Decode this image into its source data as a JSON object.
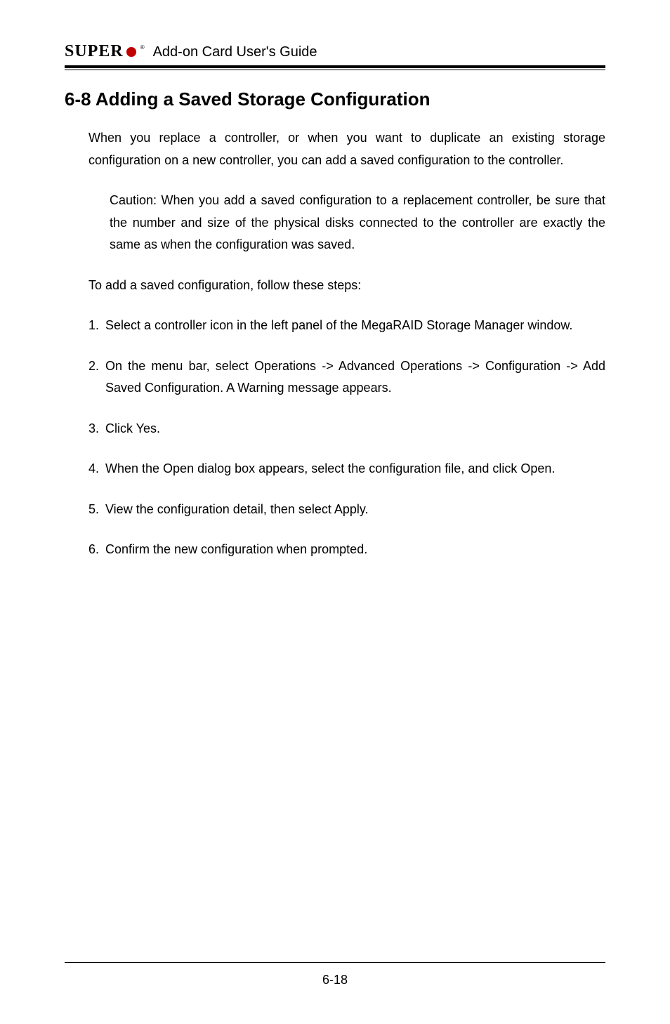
{
  "header": {
    "logo_text": "SUPER",
    "logo_registered": "®",
    "guide_title": "Add-on Card User's Guide"
  },
  "section": {
    "title": "6-8 Adding a Saved Storage Configuration",
    "intro": "When you replace a controller, or when you want to duplicate an existing storage configuration on a new controller, you can add a saved configuration to the controller.",
    "caution": "Caution: When you add a saved configuration to a replacement controller, be sure that the number and size of the physical disks connected to the controller are exactly the same as when the configuration was saved.",
    "steps_intro": "To add a saved configuration, follow these steps:",
    "steps": [
      "Select a controller icon in the left panel of the MegaRAID Storage Manager window.",
      "On the menu bar, select Operations -> Advanced Operations -> Configuration -> Add Saved Configuration. A Warning message appears.",
      "Click Yes.",
      "When the Open dialog box appears, select the configuration file, and click Open.",
      "View the configuration detail, then select Apply.",
      "Confirm the new configuration when prompted."
    ]
  },
  "footer": {
    "page_number": "6-18"
  },
  "colors": {
    "text": "#000000",
    "background": "#ffffff",
    "logo_dot": "#c00000"
  }
}
